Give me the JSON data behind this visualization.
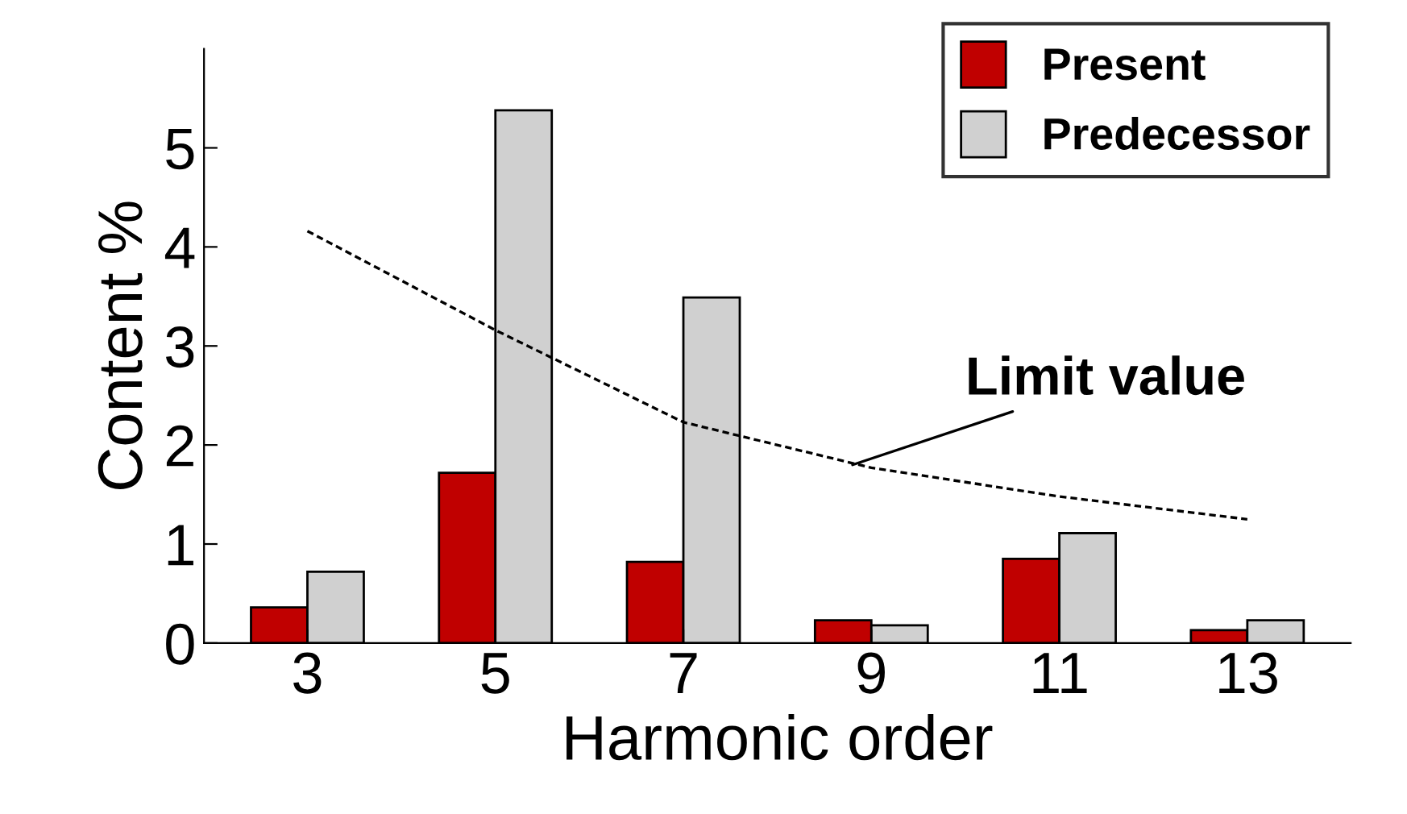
{
  "chart_data": {
    "type": "bar",
    "xlabel": "Harmonic order",
    "ylabel": "Content %",
    "categories": [
      "3",
      "5",
      "7",
      "9",
      "11",
      "13"
    ],
    "series": [
      {
        "name": "Present",
        "color": "#c00000",
        "values": [
          0.36,
          1.72,
          0.82,
          0.23,
          0.85,
          0.13
        ]
      },
      {
        "name": "Predecessor",
        "color": "#d0d0d0",
        "values": [
          0.72,
          5.38,
          3.49,
          0.18,
          1.11,
          0.23
        ]
      },
      {
        "type": "line",
        "color": "#000000",
        "line_style": "dashed",
        "values": [
          4.16,
          3.16,
          2.23,
          1.77,
          1.48,
          1.25
        ]
      }
    ],
    "annotations": [
      {
        "text": "Limit value",
        "x": "9",
        "y": 1.8
      }
    ],
    "ylim": [
      0,
      6
    ],
    "yticks": [
      0,
      1,
      2,
      3,
      4,
      5
    ],
    "grid": false,
    "legend": "top right"
  }
}
